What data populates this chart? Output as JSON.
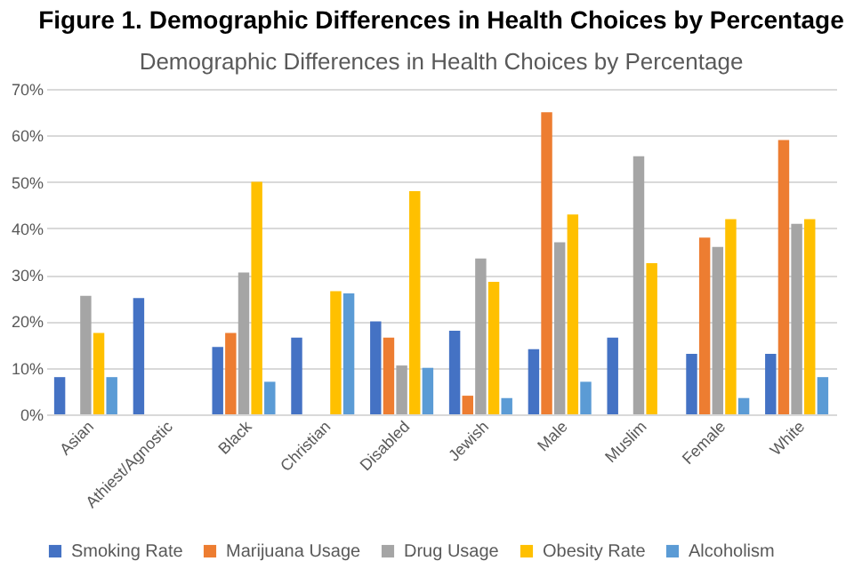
{
  "chart_data": {
    "type": "bar",
    "title": "Figure 1. Demographic Differences in Health Choices by Percentage",
    "subtitle": "Demographic Differences in Health Choices by Percentage",
    "categories": [
      "Asian",
      "Athiest/Agnostic",
      "Black",
      "Christian",
      "Disabled",
      "Jewish",
      "Male",
      "Muslim",
      "Female",
      "White"
    ],
    "series": [
      {
        "name": "Smoking Rate",
        "color": "#4472c4",
        "values": [
          8,
          25,
          14.5,
          16.5,
          20,
          18,
          14,
          16.5,
          13,
          13
        ]
      },
      {
        "name": "Marijuana Usage",
        "color": "#ed7d31",
        "values": [
          null,
          null,
          17.5,
          null,
          16.5,
          4,
          65,
          null,
          38,
          59
        ]
      },
      {
        "name": "Drug Usage",
        "color": "#a5a5a5",
        "values": [
          25.5,
          null,
          30.5,
          null,
          10.5,
          33.5,
          37,
          55.5,
          36,
          41
        ]
      },
      {
        "name": "Obesity Rate",
        "color": "#ffc000",
        "values": [
          17.5,
          null,
          50,
          26.5,
          48,
          28.5,
          43,
          32.5,
          42,
          42
        ]
      },
      {
        "name": "Alcoholism",
        "color": "#5b9bd5",
        "values": [
          8,
          null,
          7,
          26,
          10,
          3.5,
          7,
          null,
          3.5,
          8
        ]
      }
    ],
    "ylim": [
      0,
      70
    ],
    "yticks": [
      {
        "value": 0,
        "label": "0%"
      },
      {
        "value": 10,
        "label": "10%"
      },
      {
        "value": 20,
        "label": "20%"
      },
      {
        "value": 30,
        "label": "30%"
      },
      {
        "value": 40,
        "label": "40%"
      },
      {
        "value": 50,
        "label": "50%"
      },
      {
        "value": 60,
        "label": "60%"
      },
      {
        "value": 70,
        "label": "70%"
      }
    ],
    "grid": "y",
    "legend": "bottom"
  }
}
